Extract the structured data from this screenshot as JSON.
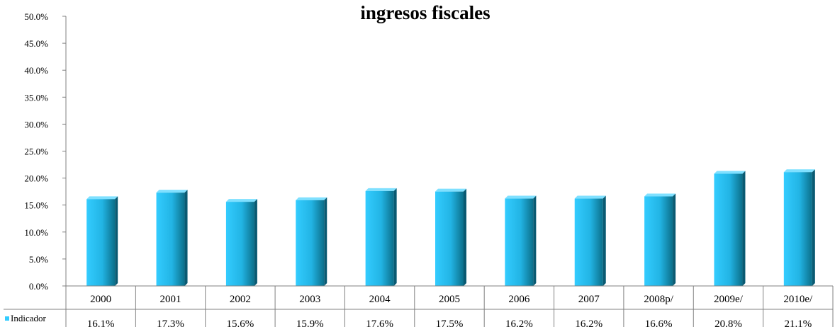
{
  "chart_data": {
    "type": "bar",
    "title": "ingresos fiscales",
    "categories": [
      "2000",
      "2001",
      "2002",
      "2003",
      "2004",
      "2005",
      "2006",
      "2007",
      "2008p/",
      "2009e/",
      "2010e/"
    ],
    "series": [
      {
        "name": "Indicador",
        "values": [
          16.1,
          17.3,
          15.6,
          15.9,
          17.6,
          17.5,
          16.2,
          16.2,
          16.6,
          20.8,
          21.1
        ],
        "value_labels": [
          "16.1%",
          "17.3%",
          "15.6%",
          "15.9%",
          "17.6%",
          "17.5%",
          "16.2%",
          "16.2%",
          "16.6%",
          "20.8%",
          "21.1%"
        ]
      }
    ],
    "y_ticks": [
      "0.0%",
      "5.0%",
      "10.0%",
      "15.0%",
      "20.0%",
      "25.0%",
      "30.0%",
      "35.0%",
      "40.0%",
      "45.0%",
      "50.0%"
    ],
    "ylim": [
      0,
      50
    ],
    "grid": false,
    "legend": "data-table-left",
    "colors": {
      "bar_light": "#33ccff",
      "bar_dark": "#0b6f8a"
    }
  }
}
